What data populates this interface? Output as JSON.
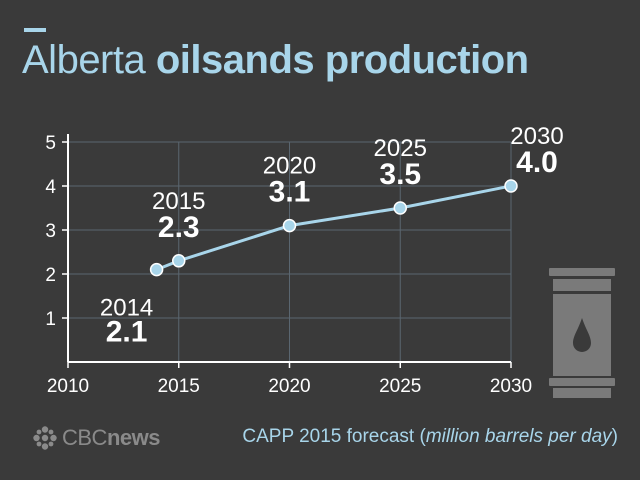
{
  "title": {
    "part1": "Alberta",
    "part2": "oilsands production"
  },
  "source": {
    "prefix": "CAPP 2015 forecast (",
    "italic": "million barrels per day",
    "suffix": ")"
  },
  "logo": {
    "cbc": "CBC",
    "news": "news",
    "icon": "cbc-gem-icon"
  },
  "colors": {
    "background": "#3a3a3a",
    "accent": "#a8d5ea",
    "line": "#a8d5ea",
    "text": "#ffffff",
    "axis": "#ffffff",
    "barrel": "#7a7a7a"
  },
  "chart_data": {
    "type": "line",
    "title": "Alberta oilsands production",
    "xlabel": "",
    "ylabel": "",
    "xlim": [
      2010,
      2030
    ],
    "ylim": [
      0,
      5
    ],
    "x_ticks": [
      "2010",
      "2015",
      "2020",
      "2025",
      "2030"
    ],
    "y_ticks": [
      "1",
      "2",
      "3",
      "4",
      "5"
    ],
    "grid": true,
    "series": [
      {
        "x": [
          2014,
          2015,
          2020,
          2025,
          2030
        ],
        "values": [
          2.1,
          2.3,
          3.1,
          3.5,
          4.0
        ]
      }
    ],
    "point_labels": [
      {
        "year": "2014",
        "value": "2.1"
      },
      {
        "year": "2015",
        "value": "2.3"
      },
      {
        "year": "2020",
        "value": "3.1"
      },
      {
        "year": "2025",
        "value": "3.5"
      },
      {
        "year": "2030",
        "value": "4.0"
      }
    ]
  }
}
